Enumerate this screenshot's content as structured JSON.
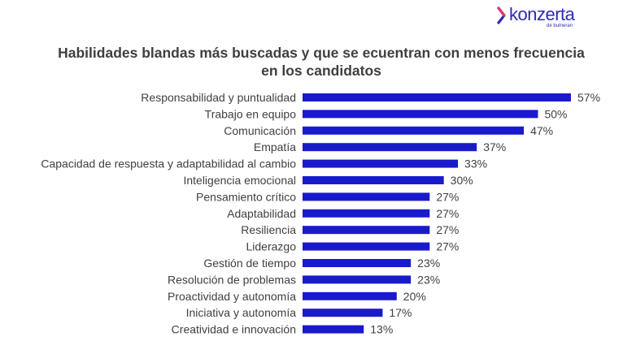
{
  "brand": {
    "name": "konzerta",
    "tagline": "de bumeran",
    "color": "#2b2bb8"
  },
  "chart_data": {
    "type": "bar",
    "orientation": "horizontal",
    "title": "Habilidades blandas más buscadas y que se ecuentran con menos frecuencia en los candidatos",
    "categories": [
      "Responsabilidad y puntualidad",
      "Trabajo en equipo",
      "Comunicación",
      "Empatía",
      "Capacidad de respuesta y adaptabilidad al cambio",
      "Inteligencia emocional",
      "Pensamiento crítico",
      "Adaptabilidad",
      "Resiliencia",
      "Liderazgo",
      "Gestión de tiempo",
      "Resolución de problemas",
      "Proactividad y autonomía",
      "Iniciativa y autonomía",
      "Creatividad e innovación"
    ],
    "values": [
      57,
      50,
      47,
      37,
      33,
      30,
      27,
      27,
      27,
      27,
      23,
      23,
      20,
      17,
      13
    ],
    "value_labels": [
      "57%",
      "50%",
      "47%",
      "37%",
      "33%",
      "30%",
      "27%",
      "27%",
      "27%",
      "27%",
      "23%",
      "23%",
      "20%",
      "17%",
      "13%"
    ],
    "unit": "%",
    "xlim": [
      0,
      57
    ],
    "bar_color": "#1a1acd",
    "grid": false,
    "legend": "none"
  }
}
